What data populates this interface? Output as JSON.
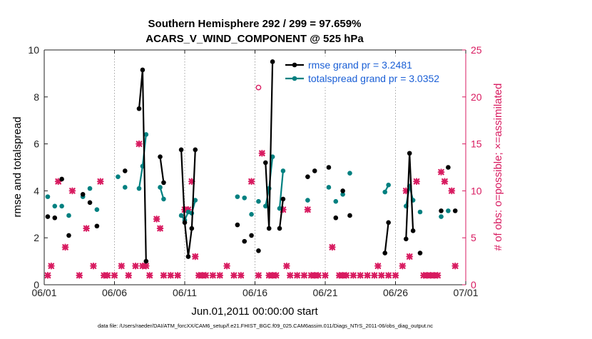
{
  "chart_data": {
    "type": "line",
    "title_line1": "Southern Hemisphere 292 / 299 = 97.659%",
    "title_line2": "ACARS_V_WIND_COMPONENT @ 525 hPa",
    "xlabel": "Jun.01,2011 00:00:00 start",
    "ylabel_left": "rmse and totalspread",
    "ylabel_right": "# of obs: o=possible; ×=assimilated",
    "footnote": "data file: /Users/raeder/DAI/ATM_forcXX/CAM6_setup/f.e21.FHIST_BGC.f09_025.CAM6assim.011/Diags_NTrS_2011-06/obs_diag_output.nc",
    "x_range": [
      0,
      30
    ],
    "x_ticks": [
      0,
      5,
      10,
      15,
      20,
      25,
      30
    ],
    "x_ticklabels": [
      "06/01",
      "06/06",
      "06/11",
      "06/16",
      "06/21",
      "06/26",
      "07/01"
    ],
    "ylim_left": [
      0,
      10
    ],
    "yticks_left": [
      "0",
      "2",
      "4",
      "6",
      "8",
      "10"
    ],
    "ylim_right": [
      0,
      25
    ],
    "yticks_right": [
      "0",
      "5",
      "10",
      "15",
      "20",
      "25"
    ],
    "legend": {
      "location": "top-right",
      "entries": [
        "rmse grand pr = 3.2481",
        "totalspread grand pr = 3.0352"
      ]
    },
    "colors": {
      "rmse": "#000000",
      "spread": "#008080",
      "obs": "#d81b60",
      "legend_text": "#1a5fd6"
    },
    "series": [
      {
        "name": "rmse grand pr = 3.2481",
        "points": [
          [
            0.25,
            2.9
          ],
          [
            0.75,
            2.85
          ],
          [
            1.25,
            4.5
          ],
          [
            1.75,
            2.1
          ],
          [
            2.75,
            3.85
          ],
          [
            3.25,
            3.5
          ],
          [
            3.75,
            2.5
          ],
          [
            5.75,
            4.85
          ],
          [
            6.75,
            7.5
          ],
          [
            7.0,
            9.15
          ],
          [
            7.25,
            1.0
          ],
          [
            8.25,
            5.45
          ],
          [
            8.5,
            4.35
          ],
          [
            9.75,
            5.75
          ],
          [
            10.0,
            2.65
          ],
          [
            10.25,
            1.2
          ],
          [
            10.5,
            2.4
          ],
          [
            10.75,
            5.75
          ],
          [
            13.75,
            2.55
          ],
          [
            14.25,
            1.85
          ],
          [
            14.75,
            2.1
          ],
          [
            15.25,
            1.45
          ],
          [
            15.75,
            5.2
          ],
          [
            16.0,
            2.4
          ],
          [
            16.25,
            9.5
          ],
          [
            16.75,
            2.4
          ],
          [
            17.0,
            3.65
          ],
          [
            18.75,
            4.6
          ],
          [
            19.25,
            4.85
          ],
          [
            20.25,
            5.0
          ],
          [
            20.75,
            2.85
          ],
          [
            21.25,
            4.0
          ],
          [
            21.75,
            2.95
          ],
          [
            24.25,
            1.35
          ],
          [
            24.5,
            2.65
          ],
          [
            25.75,
            1.95
          ],
          [
            26.0,
            5.6
          ],
          [
            26.25,
            2.3
          ],
          [
            26.75,
            1.35
          ],
          [
            28.25,
            3.15
          ],
          [
            28.75,
            5.0
          ],
          [
            29.25,
            3.15
          ]
        ]
      },
      {
        "name": "totalspread grand pr = 3.0352",
        "points": [
          [
            0.25,
            3.75
          ],
          [
            0.75,
            3.35
          ],
          [
            1.25,
            3.35
          ],
          [
            1.75,
            2.95
          ],
          [
            2.75,
            3.75
          ],
          [
            3.25,
            4.1
          ],
          [
            3.75,
            3.2
          ],
          [
            5.25,
            4.6
          ],
          [
            5.75,
            4.15
          ],
          [
            6.75,
            4.1
          ],
          [
            7.0,
            5.05
          ],
          [
            7.25,
            6.4
          ],
          [
            8.25,
            4.15
          ],
          [
            8.5,
            3.65
          ],
          [
            9.75,
            2.95
          ],
          [
            10.0,
            2.75
          ],
          [
            10.25,
            3.1
          ],
          [
            10.5,
            3.05
          ],
          [
            10.75,
            3.6
          ],
          [
            13.75,
            3.75
          ],
          [
            14.25,
            3.7
          ],
          [
            14.75,
            3.0
          ],
          [
            15.25,
            3.55
          ],
          [
            15.75,
            3.35
          ],
          [
            16.0,
            4.1
          ],
          [
            16.25,
            5.45
          ],
          [
            16.75,
            3.25
          ],
          [
            17.0,
            4.85
          ],
          [
            18.75,
            3.6
          ],
          [
            20.25,
            4.15
          ],
          [
            20.75,
            3.55
          ],
          [
            21.25,
            3.85
          ],
          [
            21.75,
            4.75
          ],
          [
            24.25,
            3.95
          ],
          [
            24.5,
            4.25
          ],
          [
            25.75,
            3.35
          ],
          [
            26.0,
            4.2
          ],
          [
            26.25,
            3.6
          ],
          [
            26.75,
            3.1
          ],
          [
            28.25,
            2.9
          ],
          [
            28.75,
            3.15
          ]
        ]
      },
      {
        "name": "",
        "mark": "x",
        "axis": "right",
        "points": [
          [
            0.25,
            1
          ],
          [
            0.5,
            2
          ],
          [
            1.0,
            11
          ],
          [
            1.5,
            4
          ],
          [
            2.0,
            10
          ],
          [
            2.5,
            1
          ],
          [
            3.0,
            6
          ],
          [
            3.5,
            2
          ],
          [
            4.0,
            11
          ],
          [
            4.25,
            1
          ],
          [
            4.5,
            1
          ],
          [
            5.0,
            1
          ],
          [
            5.5,
            2
          ],
          [
            6.0,
            1
          ],
          [
            6.5,
            2
          ],
          [
            6.75,
            15
          ],
          [
            7.0,
            2
          ],
          [
            7.25,
            2
          ],
          [
            7.5,
            1
          ],
          [
            8.0,
            7
          ],
          [
            8.25,
            6
          ],
          [
            8.5,
            1
          ],
          [
            9.0,
            1
          ],
          [
            9.5,
            1
          ],
          [
            10.0,
            8
          ],
          [
            10.25,
            8
          ],
          [
            10.5,
            11
          ],
          [
            10.75,
            3
          ],
          [
            11.0,
            1
          ],
          [
            11.25,
            1
          ],
          [
            11.5,
            1
          ],
          [
            12.0,
            1
          ],
          [
            12.5,
            1
          ],
          [
            13.0,
            2
          ],
          [
            13.5,
            1
          ],
          [
            14.0,
            1
          ],
          [
            14.75,
            11
          ],
          [
            15.25,
            1
          ],
          [
            15.5,
            14
          ],
          [
            16.0,
            1
          ],
          [
            16.25,
            1
          ],
          [
            16.5,
            1
          ],
          [
            17.0,
            8
          ],
          [
            17.25,
            2
          ],
          [
            17.5,
            1
          ],
          [
            18.0,
            1
          ],
          [
            18.5,
            1
          ],
          [
            18.75,
            8
          ],
          [
            19.0,
            1
          ],
          [
            19.25,
            1
          ],
          [
            19.5,
            1
          ],
          [
            20.0,
            1
          ],
          [
            20.5,
            4
          ],
          [
            21.0,
            1
          ],
          [
            21.25,
            1
          ],
          [
            21.5,
            1
          ],
          [
            22.0,
            1
          ],
          [
            22.5,
            1
          ],
          [
            23.0,
            1
          ],
          [
            23.5,
            1
          ],
          [
            23.75,
            2
          ],
          [
            24.0,
            1
          ],
          [
            24.5,
            1
          ],
          [
            25.0,
            1
          ],
          [
            25.5,
            2
          ],
          [
            25.75,
            10
          ],
          [
            26.0,
            3
          ],
          [
            26.5,
            11
          ],
          [
            27.0,
            1
          ],
          [
            27.25,
            1
          ],
          [
            27.5,
            1
          ],
          [
            27.75,
            1
          ],
          [
            28.0,
            1
          ],
          [
            28.25,
            12
          ],
          [
            28.5,
            11
          ],
          [
            29.0,
            10
          ],
          [
            29.25,
            2
          ]
        ]
      },
      {
        "name": "",
        "mark": "o",
        "axis": "right",
        "points": [
          [
            15.25,
            21
          ]
        ]
      }
    ]
  }
}
